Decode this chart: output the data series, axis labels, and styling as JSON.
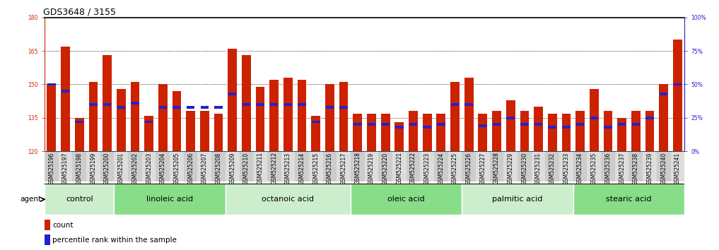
{
  "title": "GDS3648 / 3155",
  "samples": [
    "GSM525196",
    "GSM525197",
    "GSM525198",
    "GSM525199",
    "GSM525200",
    "GSM525201",
    "GSM525202",
    "GSM525203",
    "GSM525204",
    "GSM525205",
    "GSM525206",
    "GSM525207",
    "GSM525208",
    "GSM525209",
    "GSM525210",
    "GSM525211",
    "GSM525212",
    "GSM525213",
    "GSM525214",
    "GSM525215",
    "GSM525216",
    "GSM525217",
    "GSM525218",
    "GSM525219",
    "GSM525220",
    "GSM525221",
    "GSM525222",
    "GSM525223",
    "GSM525224",
    "GSM525225",
    "GSM525226",
    "GSM525227",
    "GSM525228",
    "GSM525229",
    "GSM525230",
    "GSM525231",
    "GSM525232",
    "GSM525233",
    "GSM525234",
    "GSM525235",
    "GSM525236",
    "GSM525237",
    "GSM525238",
    "GSM525239",
    "GSM525240",
    "GSM525241"
  ],
  "counts": [
    150,
    167,
    135,
    151,
    163,
    148,
    151,
    136,
    150,
    147,
    138,
    138,
    137,
    166,
    163,
    149,
    152,
    153,
    152,
    136,
    150,
    151,
    137,
    137,
    137,
    133,
    138,
    137,
    137,
    151,
    153,
    137,
    138,
    143,
    138,
    140,
    137,
    137,
    138,
    148,
    138,
    135,
    138,
    138,
    150,
    170
  ],
  "percentile_ranks": [
    50,
    45,
    22,
    35,
    35,
    33,
    36,
    22,
    33,
    33,
    33,
    33,
    33,
    43,
    35,
    35,
    35,
    35,
    35,
    22,
    33,
    33,
    20,
    20,
    20,
    18,
    20,
    18,
    20,
    35,
    35,
    19,
    20,
    25,
    20,
    20,
    18,
    18,
    20,
    25,
    18,
    20,
    20,
    25,
    43,
    50
  ],
  "groups": [
    {
      "label": "control",
      "start": 0,
      "end": 4
    },
    {
      "label": "linoleic acid",
      "start": 5,
      "end": 12
    },
    {
      "label": "octanoic acid",
      "start": 13,
      "end": 21
    },
    {
      "label": "oleic acid",
      "start": 22,
      "end": 29
    },
    {
      "label": "palmitic acid",
      "start": 30,
      "end": 37
    },
    {
      "label": "stearic acid",
      "start": 38,
      "end": 45
    }
  ],
  "bar_color": "#cc2200",
  "marker_color": "#2222cc",
  "group_colors": [
    "#cceecc",
    "#88dd88"
  ],
  "ymin": 120,
  "ymax": 180,
  "yticks_left": [
    120,
    135,
    150,
    165,
    180
  ],
  "yticks_right": [
    0,
    25,
    50,
    75,
    100
  ],
  "grid_lines": [
    135,
    150,
    165
  ],
  "bg_color": "#ffffff",
  "title_fontsize": 9,
  "tick_fontsize": 5.5,
  "group_label_fontsize": 8,
  "legend_fontsize": 7.5
}
